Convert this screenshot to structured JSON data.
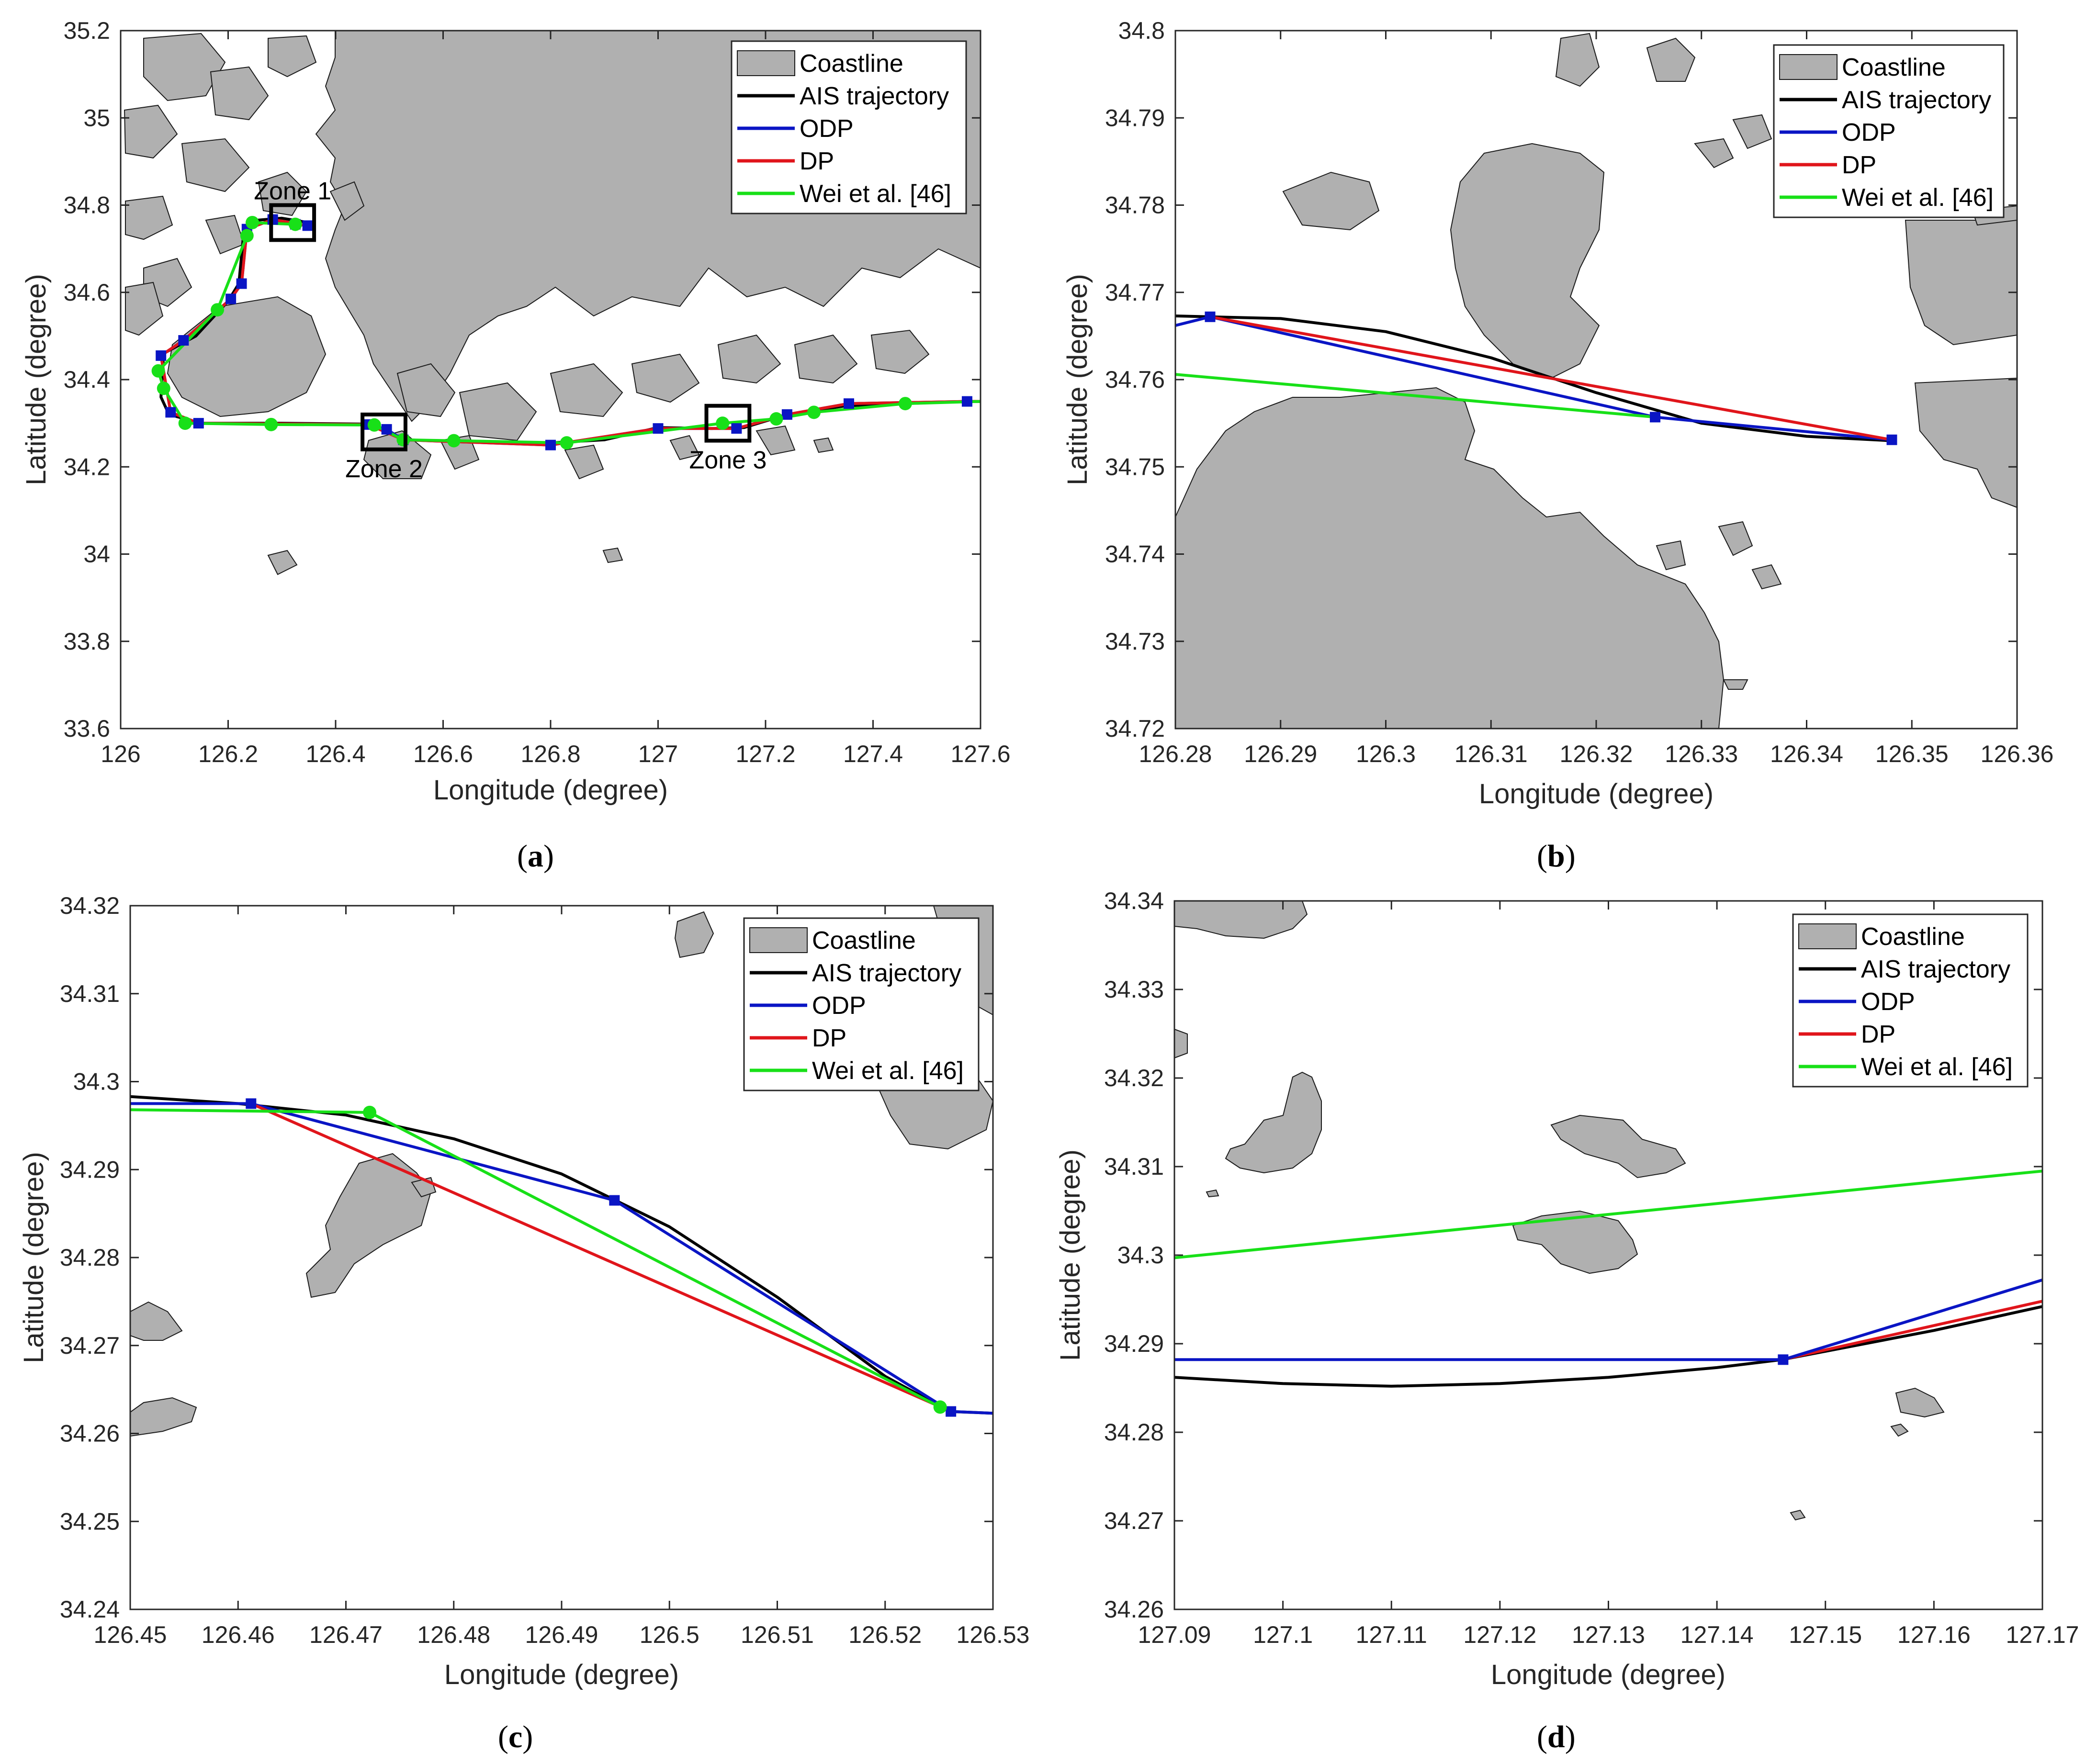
{
  "colors": {
    "coastline": "#b0b0b0",
    "coast_edge": "#1a1a1a",
    "ais": "#000000",
    "odp": "#0a15c4",
    "dp": "#e0151b",
    "wei": "#18e018"
  },
  "legend": [
    "Coastline",
    "AIS trajectory",
    "ODP",
    "DP",
    "Wei et al. [46]"
  ],
  "chart_data": [
    {
      "id": "a",
      "type": "line",
      "caption_open": "(",
      "caption_letter": "a",
      "caption_close": ")",
      "xlabel": "Longitude (degree)",
      "ylabel": "Latitude (degree)",
      "xlim": [
        126,
        127.6
      ],
      "ylim": [
        33.6,
        35.2
      ],
      "xticks": [
        126,
        126.2,
        126.4,
        126.6,
        126.8,
        127,
        127.2,
        127.4,
        127.6
      ],
      "xtick_labels": [
        "126",
        "126.2",
        "126.4",
        "126.6",
        "126.8",
        "127",
        "127.2",
        "127.4",
        "127.6"
      ],
      "yticks": [
        33.6,
        33.8,
        34,
        34.2,
        34.4,
        34.6,
        34.8,
        35,
        35.2
      ],
      "ytick_labels": [
        "33.6",
        "33.8",
        "34",
        "34.2",
        "34.4",
        "34.6",
        "34.8",
        "35",
        "35.2"
      ],
      "zones": [
        {
          "label": "Zone 1",
          "x0": 126.28,
          "x1": 126.36,
          "y0": 34.72,
          "y1": 34.8,
          "label_pos": "above"
        },
        {
          "label": "Zone 2",
          "x0": 126.45,
          "x1": 126.53,
          "y0": 34.24,
          "y1": 34.32,
          "label_pos": "below"
        },
        {
          "label": "Zone 3",
          "x0": 127.09,
          "x1": 127.17,
          "y0": 34.26,
          "y1": 34.34,
          "label_pos": "below"
        }
      ],
      "series": [
        {
          "name": "AIS trajectory",
          "color": "ais",
          "markers": false,
          "x": [
            126.35,
            126.3,
            126.25,
            126.23,
            126.22,
            126.2,
            126.14,
            126.08,
            126.075,
            126.09,
            126.15,
            126.3,
            126.46,
            126.53,
            126.7,
            126.8,
            126.9,
            127.0,
            127.1,
            127.16,
            127.24,
            127.35,
            127.46,
            127.57,
            127.6
          ],
          "y": [
            34.76,
            34.77,
            34.765,
            34.75,
            34.62,
            34.58,
            34.5,
            34.46,
            34.36,
            34.32,
            34.3,
            34.3,
            34.298,
            34.262,
            34.255,
            34.255,
            34.262,
            34.29,
            34.288,
            34.29,
            34.32,
            34.34,
            34.345,
            34.35,
            34.35
          ]
        },
        {
          "name": "ODP",
          "color": "odp",
          "markers": true,
          "marker": "square",
          "x": [
            126.348,
            126.325,
            126.283,
            126.235,
            126.225,
            126.205,
            126.117,
            126.075,
            126.093,
            126.145,
            126.461,
            126.495,
            126.526,
            126.8,
            127.0,
            127.146,
            127.24,
            127.355,
            127.575,
            127.6
          ],
          "y": [
            34.753,
            34.756,
            34.767,
            34.745,
            34.62,
            34.585,
            34.49,
            34.455,
            34.325,
            34.3,
            34.297,
            34.286,
            34.262,
            34.25,
            34.288,
            34.288,
            34.32,
            34.345,
            34.35,
            34.35
          ]
        },
        {
          "name": "DP",
          "color": "dp",
          "markers": false,
          "x": [
            126.348,
            126.283,
            126.235,
            126.225,
            126.205,
            126.117,
            126.075,
            126.093,
            126.145,
            126.461,
            126.526,
            126.8,
            127.0,
            127.146,
            127.24,
            127.355,
            127.575,
            127.6
          ],
          "y": [
            34.753,
            34.767,
            34.745,
            34.62,
            34.585,
            34.49,
            34.455,
            34.325,
            34.3,
            34.297,
            34.262,
            34.25,
            34.288,
            34.288,
            34.32,
            34.345,
            34.35,
            34.35
          ]
        },
        {
          "name": "Wei et al. [46]",
          "color": "wei",
          "markers": true,
          "marker": "circle",
          "x": [
            126.325,
            126.245,
            126.235,
            126.18,
            126.07,
            126.08,
            126.12,
            126.28,
            126.472,
            126.526,
            126.62,
            126.83,
            127.12,
            127.22,
            127.29,
            127.46,
            127.6
          ],
          "y": [
            34.756,
            34.76,
            34.73,
            34.56,
            34.42,
            34.38,
            34.3,
            34.297,
            34.296,
            34.262,
            34.26,
            34.255,
            34.3,
            34.31,
            34.325,
            34.345,
            34.35
          ]
        }
      ]
    },
    {
      "id": "b",
      "type": "line",
      "caption_open": "(",
      "caption_letter": "b",
      "caption_close": ")",
      "xlabel": "Longitude (degree)",
      "ylabel": "Latitude (degree)",
      "xlim": [
        126.28,
        126.36
      ],
      "ylim": [
        34.72,
        34.8
      ],
      "xticks": [
        126.28,
        126.29,
        126.3,
        126.31,
        126.32,
        126.33,
        126.34,
        126.35,
        126.36
      ],
      "xtick_labels": [
        "126.28",
        "126.29",
        "126.3",
        "126.31",
        "126.32",
        "126.33",
        "126.34",
        "126.35",
        "126.36"
      ],
      "yticks": [
        34.72,
        34.73,
        34.74,
        34.75,
        34.76,
        34.77,
        34.78,
        34.79,
        34.8
      ],
      "ytick_labels": [
        "34.72",
        "34.73",
        "34.74",
        "34.75",
        "34.76",
        "34.77",
        "34.78",
        "34.79",
        "34.8"
      ],
      "series": [
        {
          "name": "AIS trajectory",
          "color": "ais",
          "markers": false,
          "x": [
            126.28,
            126.29,
            126.3,
            126.31,
            126.32,
            126.33,
            126.34,
            126.348
          ],
          "y": [
            34.7673,
            34.767,
            34.7655,
            34.7625,
            34.7585,
            34.755,
            34.7535,
            34.753
          ]
        },
        {
          "name": "ODP",
          "color": "odp",
          "markers": true,
          "marker": "square",
          "x": [
            126.28,
            126.2833,
            126.3256,
            126.3481
          ],
          "y": [
            34.7662,
            34.7672,
            34.7557,
            34.7531
          ]
        },
        {
          "name": "DP",
          "color": "dp",
          "markers": false,
          "x": [
            126.2833,
            126.3481
          ],
          "y": [
            34.7672,
            34.7531
          ]
        },
        {
          "name": "Wei et al. [46]",
          "color": "wei",
          "markers": false,
          "x": [
            126.28,
            126.3256
          ],
          "y": [
            34.7606,
            34.7557
          ]
        }
      ]
    },
    {
      "id": "c",
      "type": "line",
      "caption_open": "(",
      "caption_letter": "c",
      "caption_close": ")",
      "xlabel": "Longitude (degree)",
      "ylabel": "Latitude (degree)",
      "xlim": [
        126.45,
        126.53
      ],
      "ylim": [
        34.24,
        34.32
      ],
      "xticks": [
        126.45,
        126.46,
        126.47,
        126.48,
        126.49,
        126.5,
        126.51,
        126.52,
        126.53
      ],
      "xtick_labels": [
        "126.45",
        "126.46",
        "126.47",
        "126.48",
        "126.49",
        "126.5",
        "126.51",
        "126.52",
        "126.53"
      ],
      "yticks": [
        34.24,
        34.25,
        34.26,
        34.27,
        34.28,
        34.29,
        34.3,
        34.31,
        34.32
      ],
      "ytick_labels": [
        "34.24",
        "34.25",
        "34.26",
        "34.27",
        "34.28",
        "34.29",
        "34.3",
        "34.31",
        "34.32"
      ],
      "series": [
        {
          "name": "AIS trajectory",
          "color": "ais",
          "markers": false,
          "x": [
            126.45,
            126.46,
            126.47,
            126.48,
            126.49,
            126.5,
            126.51,
            126.52,
            126.526,
            126.53
          ],
          "y": [
            34.2983,
            34.2975,
            34.2962,
            34.2935,
            34.2895,
            34.2835,
            34.2755,
            34.2665,
            34.2625,
            34.2623
          ]
        },
        {
          "name": "ODP",
          "color": "odp",
          "markers": true,
          "marker": "square",
          "x": [
            126.45,
            126.4612,
            126.4949,
            126.5261,
            126.53
          ],
          "y": [
            34.2975,
            34.2975,
            34.2865,
            34.2625,
            34.2623
          ]
        },
        {
          "name": "DP",
          "color": "dp",
          "markers": false,
          "x": [
            126.4612,
            126.5261
          ],
          "y": [
            34.2975,
            34.2625
          ]
        },
        {
          "name": "Wei et al. [46]",
          "color": "wei",
          "markers": true,
          "marker": "circle",
          "x": [
            126.45,
            126.4722,
            126.5251
          ],
          "y": [
            34.2968,
            34.2965,
            34.263
          ]
        }
      ]
    },
    {
      "id": "d",
      "type": "line",
      "caption_open": "(",
      "caption_letter": "d",
      "caption_close": ")",
      "xlabel": "Longitude (degree)",
      "ylabel": "Latitude (degree)",
      "xlim": [
        127.09,
        127.17
      ],
      "ylim": [
        34.26,
        34.34
      ],
      "xticks": [
        127.09,
        127.1,
        127.11,
        127.12,
        127.13,
        127.14,
        127.15,
        127.16,
        127.17
      ],
      "xtick_labels": [
        "127.09",
        "127.1",
        "127.11",
        "127.12",
        "127.13",
        "127.14",
        "127.15",
        "127.16",
        "127.17"
      ],
      "yticks": [
        34.26,
        34.27,
        34.28,
        34.29,
        34.3,
        34.31,
        34.32,
        34.33,
        34.34
      ],
      "ytick_labels": [
        "34.26",
        "34.27",
        "34.28",
        "34.29",
        "34.3",
        "34.31",
        "34.32",
        "34.33",
        "34.34"
      ],
      "series": [
        {
          "name": "AIS trajectory",
          "color": "ais",
          "markers": false,
          "x": [
            127.09,
            127.1,
            127.11,
            127.12,
            127.13,
            127.14,
            127.146,
            127.16,
            127.17
          ],
          "y": [
            34.2862,
            34.2855,
            34.2852,
            34.2855,
            34.2862,
            34.2873,
            34.2882,
            34.2915,
            34.2942
          ]
        },
        {
          "name": "DP",
          "color": "dp",
          "markers": false,
          "x": [
            127.146,
            127.17
          ],
          "y": [
            34.2882,
            34.2948
          ]
        },
        {
          "name": "ODP",
          "color": "odp",
          "markers": true,
          "marker": "square",
          "x": [
            127.09,
            127.1461,
            127.17
          ],
          "y": [
            34.2882,
            34.2882,
            34.2972
          ]
        },
        {
          "name": "Wei et al. [46]",
          "color": "wei",
          "markers": false,
          "x": [
            127.09,
            127.17
          ],
          "y": [
            34.2997,
            34.3095
          ]
        }
      ]
    }
  ]
}
